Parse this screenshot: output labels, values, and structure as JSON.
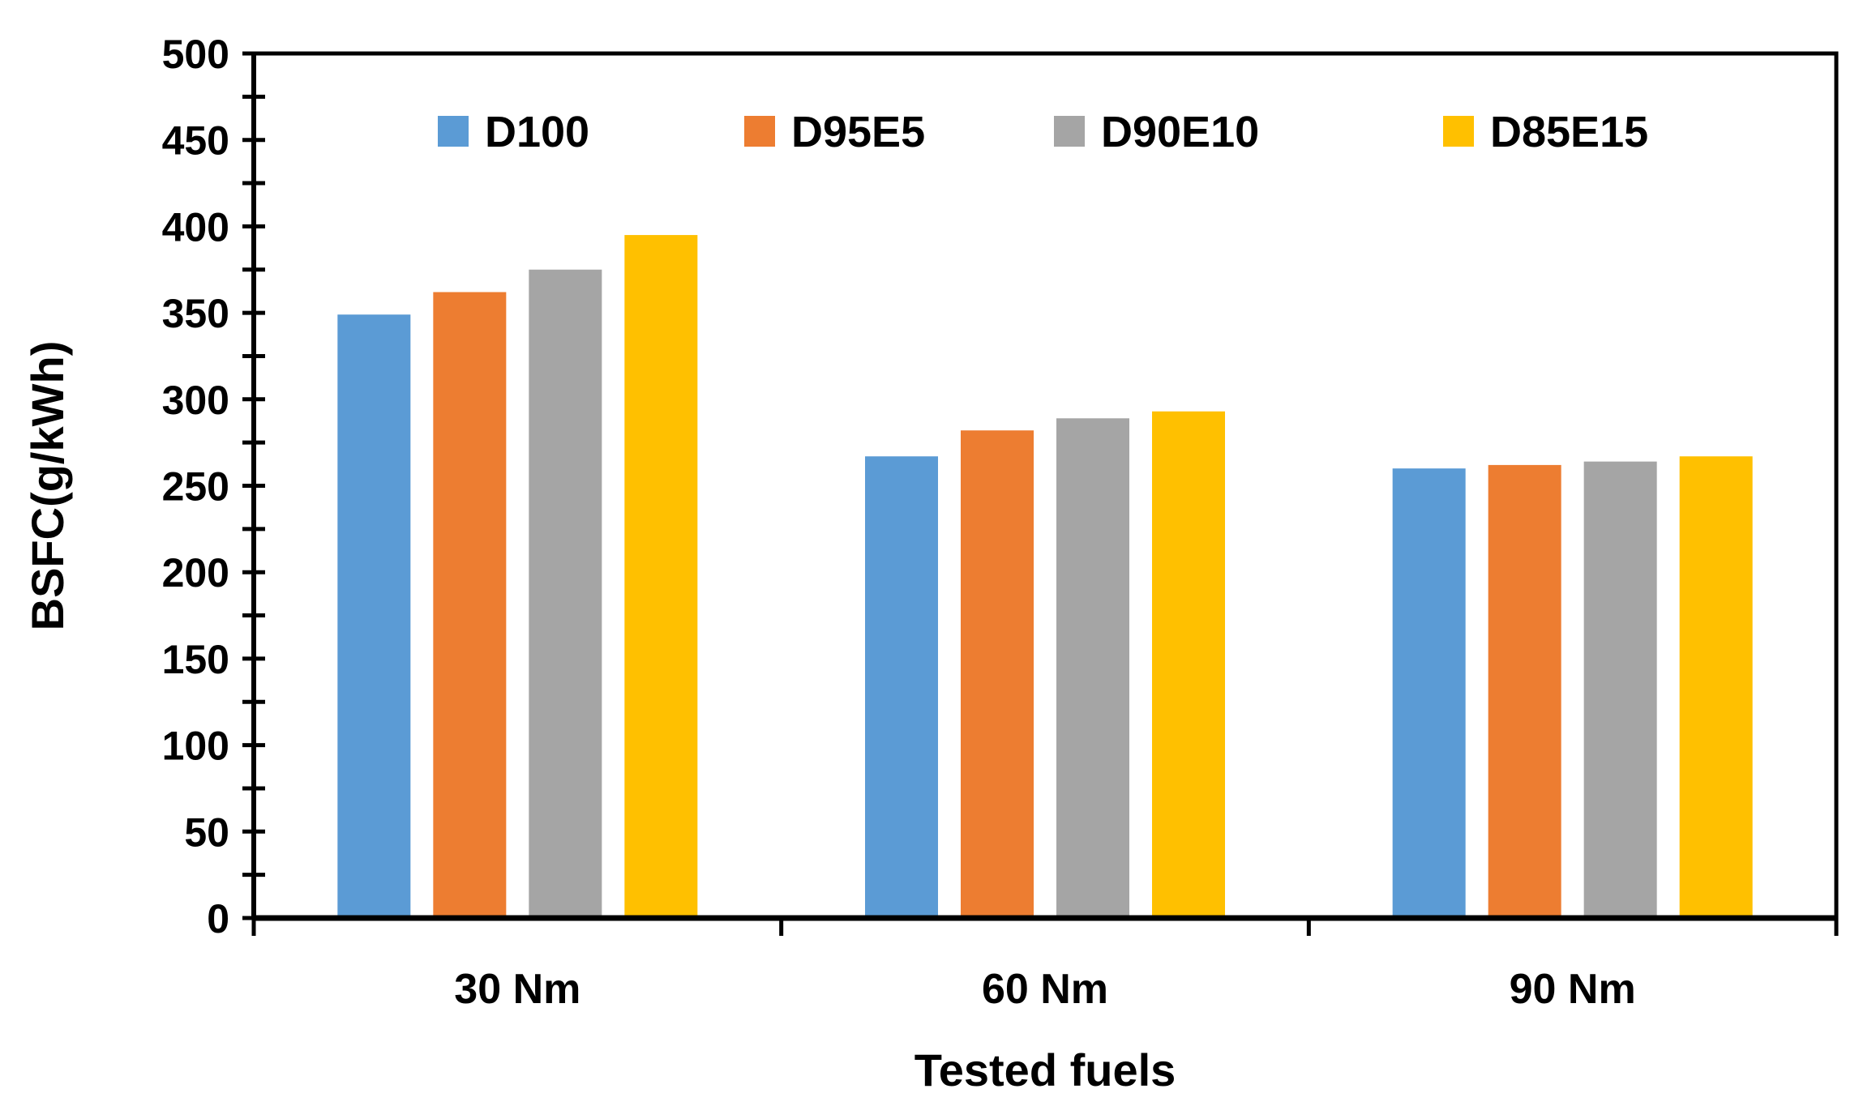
{
  "chart_data": {
    "type": "bar",
    "title": "",
    "xlabel": "Tested fuels",
    "ylabel": "BSFC(g/kWh)",
    "categories": [
      "30 Nm",
      "60 Nm",
      "90 Nm"
    ],
    "ylim": [
      0,
      500
    ],
    "yticks": [
      "0",
      "50",
      "100",
      "150",
      "200",
      "250",
      "300",
      "350",
      "400",
      "450",
      "500"
    ],
    "minor_tick_step": 25,
    "legend_position": "top",
    "grid": false,
    "series": [
      {
        "name": "D100",
        "color": "#5B9BD5",
        "values": [
          349,
          267,
          260
        ]
      },
      {
        "name": "D95E5",
        "color": "#ED7D31",
        "values": [
          362,
          282,
          262
        ]
      },
      {
        "name": "D90E10",
        "color": "#A5A5A5",
        "values": [
          375,
          289,
          264
        ]
      },
      {
        "name": "D85E15",
        "color": "#FFC000",
        "values": [
          395,
          293,
          267
        ]
      }
    ]
  }
}
